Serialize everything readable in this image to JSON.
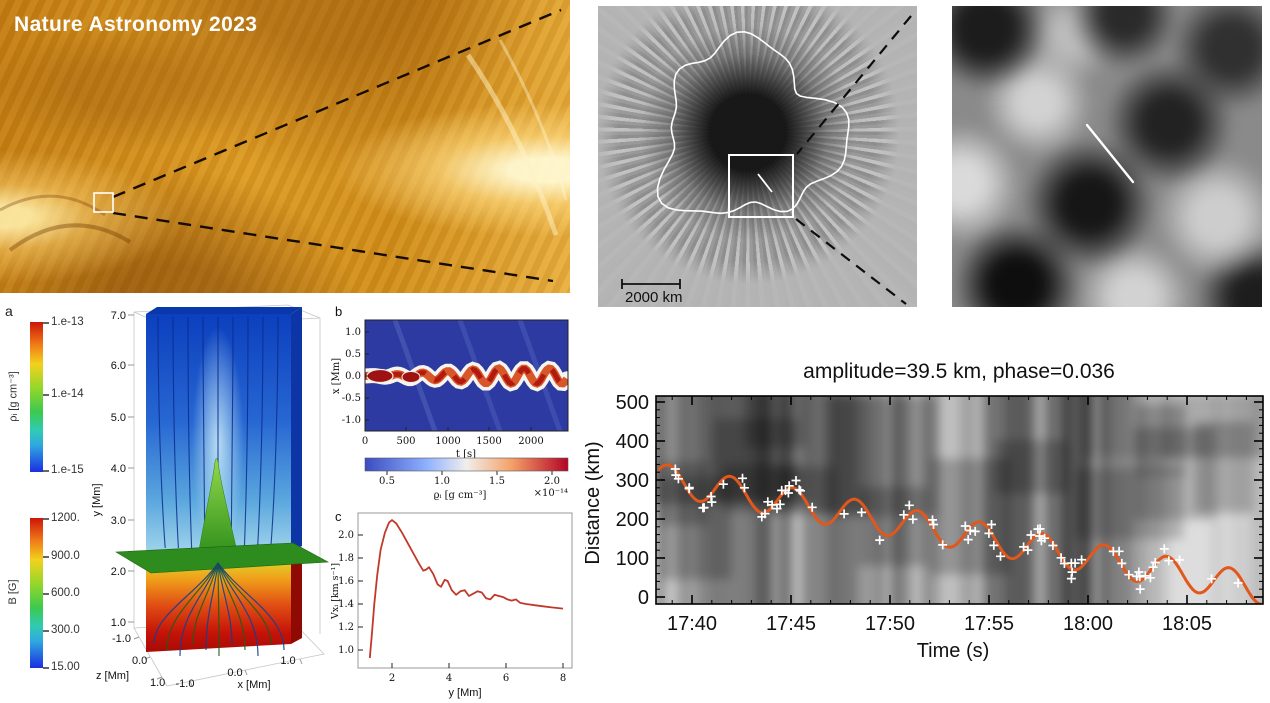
{
  "colors": {
    "fit_curve": "#e2571b",
    "panel_c_line": "#c1392b",
    "heat_blue_bg": "#2c3aa2",
    "umbra_dark": "#141414",
    "euv_orange": "#dc9a22"
  },
  "euv": {
    "watermark": "Nature Astronomy 2023"
  },
  "sunspot": {
    "scalebar": "2000 km"
  },
  "panel_a": {
    "letter": "a",
    "colorbar_density": {
      "label": "ρᵢ [g cm⁻³]",
      "ticks": [
        "1.e-13",
        "1.e-14",
        "1.e-15"
      ]
    },
    "colorbar_field": {
      "label": "B [G]",
      "ticks": [
        "1200.",
        "900.0",
        "600.0",
        "300.0",
        "15.00"
      ]
    },
    "axes": {
      "ylabel": "y [Mm]",
      "yticks": [
        "7.0",
        "6.0",
        "5.0",
        "4.0",
        "3.0",
        "2.0",
        "1.0"
      ],
      "zlabel": "z [Mm]",
      "zticks": [
        "-1.0",
        "0.0",
        "1.0"
      ],
      "xlabel": "x [Mm]",
      "xticks": [
        "-1.0",
        "0.0",
        "1.0"
      ]
    }
  },
  "panel_b": {
    "letter": "b",
    "ylabel": "x [Mm]",
    "yticks": [
      "1.0",
      "0.5",
      "0.0",
      "-0.5",
      "-1.0"
    ],
    "xlabel": "t [s]",
    "xticks": [
      "0",
      "500",
      "1000",
      "1500",
      "2000"
    ],
    "colorbar": {
      "ticks": [
        "0.5",
        "1.0",
        "1.5",
        "2.0"
      ],
      "label": "ϱᵢ [g cm⁻³]",
      "scale": "×10⁻¹⁴"
    }
  },
  "panel_c": {
    "letter": "c",
    "ylabel": "Vxᵢ [km s⁻¹]",
    "yticks": [
      "2.0",
      "1.8",
      "1.6",
      "1.4",
      "1.2",
      "1.0"
    ],
    "xlabel": "y [Mm]",
    "xticks": [
      "2",
      "4",
      "6",
      "8"
    ]
  },
  "kymograph": {
    "title": "amplitude=39.5 km, phase=0.036",
    "ylabel": "Distance (km)",
    "yticks": [
      "500",
      "400",
      "300",
      "200",
      "100",
      "0"
    ],
    "xlabel": "Time (s)",
    "xticks": [
      "17:40",
      "17:45",
      "17:50",
      "17:55",
      "18:00",
      "18:05"
    ]
  },
  "chart_data": [
    {
      "id": "panel_b",
      "type": "heatmap",
      "xlabel": "t [s]",
      "ylabel": "x [Mm]",
      "xticks": [
        0,
        500,
        1000,
        1500,
        2000
      ],
      "yticks": [
        1.0,
        0.5,
        0.0,
        -0.5,
        -1.0
      ],
      "xlim": [
        0,
        2450
      ],
      "ylim": [
        -1.15,
        1.15
      ],
      "colorbar": {
        "label": "ϱᵢ [g cm⁻³]",
        "scale_factor": 1e-14,
        "ticks": [
          0.5,
          1.0,
          1.5,
          2.0
        ],
        "palette": "blue-white-red"
      },
      "description": "Dense flux-tube ridge at x≈0 Mm oscillating transversely with amplitude growing to ~0.15 Mm over 0–2450 s; core density ~1.5–2.2e-14 on ~0.5e-14 background"
    },
    {
      "id": "panel_c",
      "type": "line",
      "xlabel": "y [Mm]",
      "ylabel": "Vxᵢ [km s⁻¹]",
      "xticks": [
        2,
        4,
        6,
        8
      ],
      "yticks": [
        1.0,
        1.2,
        1.4,
        1.6,
        1.8,
        2.0
      ],
      "xlim": [
        1.0,
        8.3
      ],
      "ylim": [
        0.85,
        2.2
      ],
      "color": "#c1392b",
      "x": [
        1.22,
        1.3,
        1.38,
        1.48,
        1.6,
        1.75,
        1.9,
        2.0,
        2.15,
        2.35,
        2.55,
        2.75,
        2.95,
        3.1,
        3.2,
        3.3,
        3.45,
        3.6,
        3.72,
        3.85,
        3.95,
        4.1,
        4.25,
        4.4,
        4.55,
        4.7,
        4.85,
        5.0,
        5.15,
        5.3,
        5.45,
        5.6,
        5.75,
        5.9,
        6.05,
        6.2,
        6.35,
        6.5,
        6.7,
        7.0,
        7.3,
        7.6,
        8.0
      ],
      "y": [
        0.93,
        1.15,
        1.4,
        1.65,
        1.87,
        2.02,
        2.11,
        2.13,
        2.1,
        2.02,
        1.93,
        1.84,
        1.75,
        1.69,
        1.7,
        1.72,
        1.66,
        1.57,
        1.55,
        1.61,
        1.6,
        1.52,
        1.48,
        1.51,
        1.52,
        1.47,
        1.49,
        1.51,
        1.5,
        1.45,
        1.44,
        1.48,
        1.47,
        1.46,
        1.44,
        1.43,
        1.44,
        1.41,
        1.4,
        1.39,
        1.38,
        1.37,
        1.36
      ]
    },
    {
      "id": "kymograph",
      "type": "line+scatter",
      "title": "amplitude=39.5 km, phase=0.036",
      "xlabel": "Time (s)",
      "ylabel": "Distance (km)",
      "xticks": [
        "17:40",
        "17:45",
        "17:50",
        "17:55",
        "18:00",
        "18:05"
      ],
      "yticks": [
        0,
        100,
        200,
        300,
        400,
        500
      ],
      "ylim": [
        0,
        533
      ],
      "fit": {
        "amplitude_km": 39.5,
        "phase": 0.036,
        "period_min": 3.15,
        "base_at_1740_km": 288,
        "slope_km_per_min": -9.3,
        "t_min": -1.8,
        "t_max": 28.8,
        "phase_rad": 0.374,
        "marker_count": 78
      },
      "description": "Transverse oscillation of umbral fibril along slit: decaying position drifting from ~300 km at 17:38 to ~25 km at 18:08 with ~3-min period sinusoid (amplitude 39.5 km) fitted in orange; white plus signs are measured positions"
    }
  ]
}
